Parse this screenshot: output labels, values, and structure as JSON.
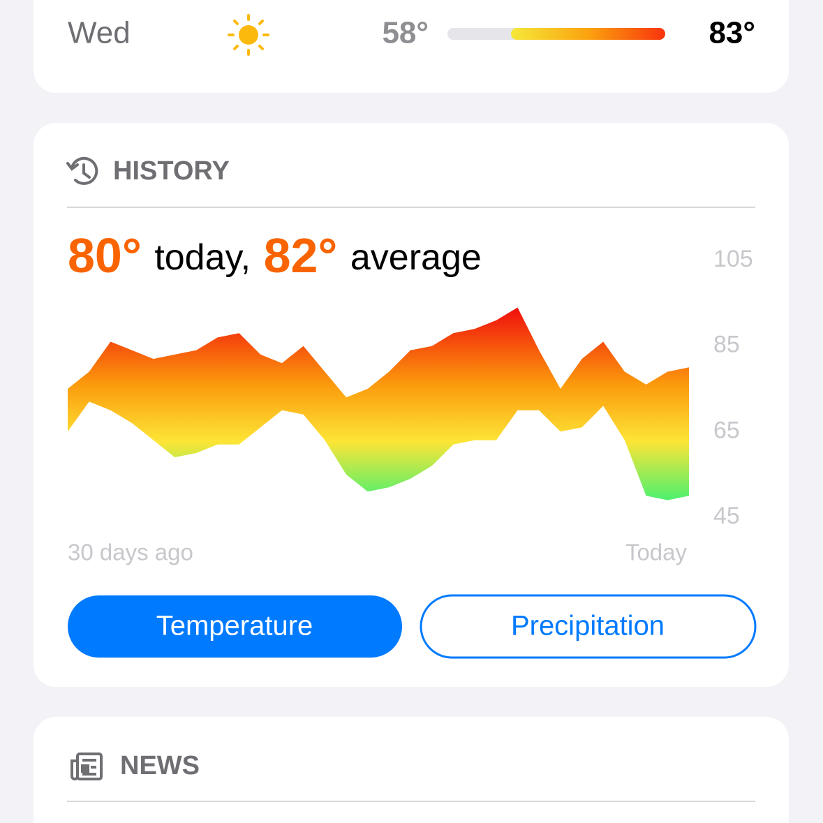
{
  "forecast_row": {
    "day": "Wed",
    "low": "58°",
    "high": "83°"
  },
  "history": {
    "title": "HISTORY",
    "today_value": "80°",
    "today_text": "today,",
    "average_value": "82°",
    "average_text": "average",
    "buttons": [
      "Temperature",
      "Precipitation"
    ]
  },
  "news": {
    "title": "NEWS"
  },
  "chart_data": {
    "type": "range-area",
    "x_labels": [
      "30 days ago",
      "Today"
    ],
    "high_values": [
      75,
      79,
      86,
      84,
      82,
      83,
      84,
      87,
      88,
      83,
      81,
      85,
      79,
      73,
      75,
      79,
      84,
      85,
      88,
      89,
      91,
      94,
      84,
      75,
      82,
      86,
      79,
      76,
      79,
      80
    ],
    "low_values": [
      65,
      72,
      70,
      67,
      63,
      59,
      60,
      62,
      62,
      66,
      70,
      69,
      63,
      55,
      51,
      52,
      54,
      57,
      62,
      63,
      63,
      70,
      70,
      65,
      66,
      71,
      63,
      50,
      49,
      50
    ],
    "ylim": [
      45,
      105
    ],
    "yticks": [
      45,
      65,
      85,
      105
    ]
  }
}
